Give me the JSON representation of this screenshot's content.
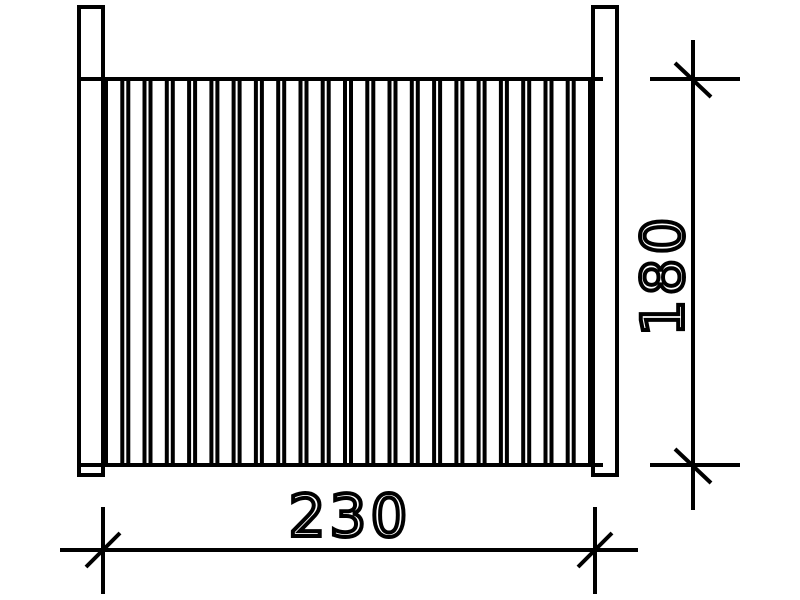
{
  "drawing": {
    "type": "fence panel elevation",
    "slat_count": 23,
    "line_color": "#000000",
    "background": "#ffffff"
  },
  "dimensions": {
    "width_label": "230",
    "height_label": "180"
  }
}
